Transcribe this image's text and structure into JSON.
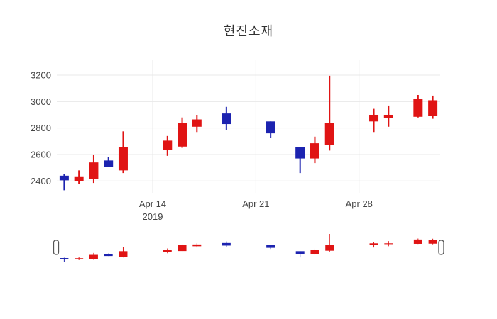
{
  "chart_data": {
    "type": "candlestick",
    "title": "현진소재",
    "y_axis": {
      "tick_labels": [
        "2400",
        "2600",
        "2800",
        "3000",
        "3200"
      ],
      "tick_values": [
        2400,
        2600,
        2800,
        3000,
        3200
      ],
      "range": [
        2310,
        3312
      ]
    },
    "x_axis": {
      "ticks": [
        {
          "line1": "Apr 14",
          "line2": "2019",
          "date": "2019-04-14"
        },
        {
          "line1": "Apr 21",
          "line2": "",
          "date": "2019-04-21"
        },
        {
          "line1": "Apr 28",
          "line2": "",
          "date": "2019-04-28"
        }
      ],
      "range_start": "2019-04-08",
      "range_days": 26
    },
    "colors": {
      "increasing": "#e01414",
      "decreasing": "#1c23b0",
      "grid": "#e8e8e8",
      "background": "#ffffff",
      "handle_border": "#555555"
    },
    "legend": {
      "shown": false
    },
    "grid": true,
    "rangeslider": {
      "shown": true,
      "selected_range": "full"
    },
    "candles": [
      {
        "date": "2019-04-08",
        "open": 2440,
        "high": 2450,
        "low": 2330,
        "close": 2405
      },
      {
        "date": "2019-04-09",
        "open": 2400,
        "high": 2480,
        "low": 2375,
        "close": 2435
      },
      {
        "date": "2019-04-10",
        "open": 2415,
        "high": 2600,
        "low": 2385,
        "close": 2540
      },
      {
        "date": "2019-04-11",
        "open": 2555,
        "high": 2580,
        "low": 2505,
        "close": 2505
      },
      {
        "date": "2019-04-12",
        "open": 2480,
        "high": 2775,
        "low": 2460,
        "close": 2655
      },
      {
        "date": "2019-04-15",
        "open": 2635,
        "high": 2740,
        "low": 2590,
        "close": 2705
      },
      {
        "date": "2019-04-16",
        "open": 2660,
        "high": 2880,
        "low": 2650,
        "close": 2840
      },
      {
        "date": "2019-04-17",
        "open": 2810,
        "high": 2900,
        "low": 2770,
        "close": 2865
      },
      {
        "date": "2019-04-19",
        "open": 2910,
        "high": 2960,
        "low": 2785,
        "close": 2830
      },
      {
        "date": "2019-04-22",
        "open": 2850,
        "high": 2850,
        "low": 2725,
        "close": 2760
      },
      {
        "date": "2019-04-24",
        "open": 2655,
        "high": 2655,
        "low": 2460,
        "close": 2570
      },
      {
        "date": "2019-04-25",
        "open": 2570,
        "high": 2735,
        "low": 2535,
        "close": 2685
      },
      {
        "date": "2019-04-26",
        "open": 2670,
        "high": 3195,
        "low": 2630,
        "close": 2840
      },
      {
        "date": "2019-04-29",
        "open": 2850,
        "high": 2945,
        "low": 2770,
        "close": 2900
      },
      {
        "date": "2019-04-30",
        "open": 2875,
        "high": 2970,
        "low": 2810,
        "close": 2900
      },
      {
        "date": "2019-05-02",
        "open": 2885,
        "high": 3050,
        "low": 2880,
        "close": 3020
      },
      {
        "date": "2019-05-03",
        "open": 2890,
        "high": 3045,
        "low": 2870,
        "close": 3010
      }
    ]
  }
}
